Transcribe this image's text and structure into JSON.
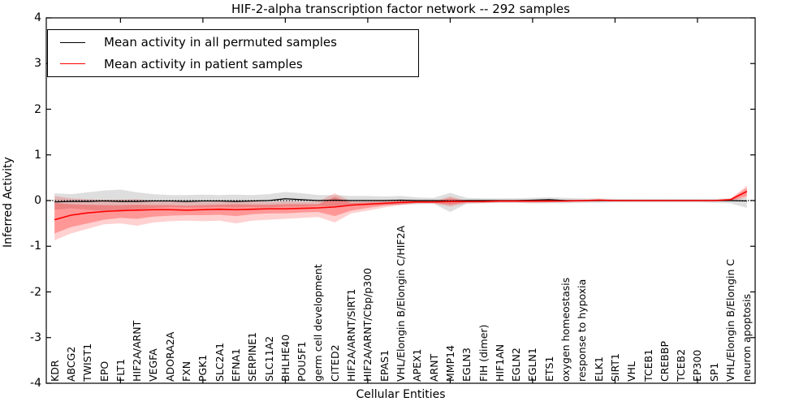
{
  "figure": {
    "title": "HIF-2-alpha transcription factor network -- 292 samples",
    "xlabel": "Cellular Entities",
    "ylabel": "Inferred Activity",
    "legend": [
      {
        "label": "Mean activity in all permuted samples",
        "color": "#000000"
      },
      {
        "label": "Mean activity in patient samples",
        "color": "#ff0000"
      }
    ]
  },
  "chart_data": {
    "type": "line",
    "title": "HIF-2-alpha transcription factor network -- 292 samples",
    "xlabel": "Cellular Entities",
    "ylabel": "Inferred Activity",
    "ylim": [
      -4,
      4
    ],
    "yticks": [
      4,
      3,
      2,
      1,
      0,
      -1,
      -2,
      -3,
      -4
    ],
    "x_major_tick_indices": [
      4,
      9,
      14,
      19,
      24,
      29,
      34,
      39
    ],
    "grid": false,
    "zero_line_style": "black dotted at y=0",
    "legend_position": "upper left",
    "tick_direction": "in",
    "categories": [
      "KDR",
      "ABCG2",
      "TWIST1",
      "EPO",
      "FLT1",
      "HIF2A/ARNT",
      "VEGFA",
      "ADORA2A",
      "FXN",
      "PGK1",
      "SLC2A1",
      "EFNA1",
      "SERPINE1",
      "SLC11A2",
      "BHLHE40",
      "POU5F1",
      "germ cell development",
      "CITED2",
      "HIF2A/ARNT/SIRT1",
      "HIF2A/ARNT/Cbp/p300",
      "EPAS1",
      "VHL/Elongin B/Elongin C/HIF2A",
      "APEX1",
      "ARNT",
      "MMP14",
      "EGLN3",
      "FIH (dimer)",
      "HIF1AN",
      "EGLN2",
      "EGLN1",
      "ETS1",
      "oxygen homeostasis",
      "response to hypoxia",
      "ELK1",
      "SIRT1",
      "VHL",
      "TCEB1",
      "CREBBP",
      "TCEB2",
      "EP300",
      "SP1",
      "VHL/Elongin B/Elongin C",
      "neuron apoptosis"
    ],
    "series": [
      {
        "name": "Mean activity in all permuted samples",
        "color": "#000000",
        "linewidth": 1.2,
        "values": [
          -0.03,
          -0.02,
          -0.02,
          -0.01,
          -0.02,
          -0.02,
          -0.01,
          -0.01,
          -0.02,
          -0.01,
          -0.01,
          -0.02,
          -0.01,
          0,
          0.04,
          0.02,
          0,
          0.01,
          0,
          0,
          0,
          0.01,
          0,
          0,
          -0.01,
          0,
          0,
          0,
          0,
          0.01,
          0.02,
          0,
          0,
          0,
          0,
          0,
          0,
          0,
          0,
          0,
          0,
          0,
          -0.01
        ]
      },
      {
        "name": "Mean activity in patient samples",
        "color": "#ff0000",
        "linewidth": 1.6,
        "values": [
          -0.42,
          -0.32,
          -0.27,
          -0.24,
          -0.22,
          -0.21,
          -0.2,
          -0.2,
          -0.21,
          -0.2,
          -0.19,
          -0.2,
          -0.19,
          -0.18,
          -0.18,
          -0.17,
          -0.16,
          -0.14,
          -0.1,
          -0.08,
          -0.06,
          -0.04,
          -0.03,
          -0.03,
          -0.02,
          -0.02,
          -0.02,
          -0.01,
          -0.01,
          -0.01,
          -0.01,
          -0.01,
          0,
          0.01,
          0,
          0,
          0,
          0,
          0,
          0,
          0,
          0.02,
          0.2
        ]
      }
    ],
    "bands": [
      {
        "name": "permuted samples std band",
        "color": "#000000",
        "opacity": 0.13,
        "upper": [
          0.16,
          0.14,
          0.18,
          0.22,
          0.24,
          0.18,
          0.14,
          0.12,
          0.12,
          0.13,
          0.12,
          0.13,
          0.12,
          0.14,
          0.19,
          0.16,
          0.12,
          0.12,
          0.1,
          0.1,
          0.09,
          0.1,
          0.07,
          0.06,
          0.17,
          0.06,
          0.05,
          0.05,
          0.05,
          0.06,
          0.07,
          0.06,
          0.05,
          0.05,
          0.04,
          0.04,
          0.04,
          0.04,
          0.04,
          0.04,
          0.04,
          0.05,
          0.06
        ],
        "lower": [
          -0.2,
          -0.17,
          -0.2,
          -0.23,
          -0.25,
          -0.2,
          -0.16,
          -0.14,
          -0.15,
          -0.15,
          -0.14,
          -0.15,
          -0.14,
          -0.15,
          -0.13,
          -0.13,
          -0.12,
          -0.12,
          -0.11,
          -0.1,
          -0.09,
          -0.09,
          -0.08,
          -0.07,
          -0.25,
          -0.07,
          -0.06,
          -0.05,
          -0.05,
          -0.06,
          -0.06,
          -0.06,
          -0.05,
          -0.05,
          -0.04,
          -0.04,
          -0.04,
          -0.04,
          -0.04,
          -0.04,
          -0.05,
          -0.06,
          -0.16
        ]
      },
      {
        "name": "patient samples outer band",
        "color": "#ff0000",
        "opacity": 0.18,
        "upper": [
          0.1,
          0.05,
          0.03,
          0.02,
          0.02,
          0.03,
          0,
          -0.02,
          -0.02,
          -0.03,
          -0.02,
          0,
          -0.02,
          -0.03,
          -0.02,
          -0.03,
          -0.02,
          0.16,
          -0.02,
          -0.02,
          0,
          0.02,
          0,
          -0.01,
          0.09,
          0,
          0,
          0,
          0,
          0.01,
          0.02,
          0.01,
          0.01,
          0.03,
          0.02,
          0.01,
          0.01,
          0.01,
          0.01,
          0.01,
          0.01,
          0.04,
          0.33
        ],
        "lower": [
          -0.87,
          -0.72,
          -0.62,
          -0.52,
          -0.5,
          -0.55,
          -0.48,
          -0.45,
          -0.44,
          -0.45,
          -0.44,
          -0.5,
          -0.44,
          -0.42,
          -0.4,
          -0.38,
          -0.36,
          -0.48,
          -0.28,
          -0.22,
          -0.15,
          -0.1,
          -0.06,
          -0.06,
          -0.13,
          -0.06,
          -0.05,
          -0.04,
          -0.04,
          -0.05,
          -0.04,
          -0.03,
          -0.03,
          -0.02,
          -0.02,
          -0.02,
          -0.02,
          -0.02,
          -0.02,
          -0.02,
          -0.02,
          -0.01,
          0.06
        ]
      },
      {
        "name": "patient samples inner band",
        "color": "#ff0000",
        "opacity": 0.28,
        "upper": [
          -0.05,
          -0.08,
          -0.09,
          -0.1,
          -0.1,
          -0.09,
          -0.1,
          -0.1,
          -0.11,
          -0.1,
          -0.09,
          -0.08,
          -0.09,
          -0.09,
          -0.08,
          -0.08,
          -0.08,
          0.08,
          -0.05,
          -0.04,
          -0.03,
          -0.01,
          -0.01,
          -0.02,
          0.05,
          -0.01,
          -0.01,
          0,
          0,
          0,
          0.01,
          0,
          0,
          0.02,
          0.01,
          0,
          0,
          0,
          0,
          0,
          0,
          0.03,
          0.28
        ],
        "lower": [
          -0.72,
          -0.58,
          -0.5,
          -0.42,
          -0.38,
          -0.4,
          -0.35,
          -0.33,
          -0.32,
          -0.32,
          -0.31,
          -0.34,
          -0.3,
          -0.28,
          -0.28,
          -0.26,
          -0.25,
          -0.34,
          -0.22,
          -0.16,
          -0.11,
          -0.08,
          -0.05,
          -0.05,
          -0.09,
          -0.04,
          -0.04,
          -0.03,
          -0.03,
          -0.03,
          -0.03,
          -0.02,
          -0.02,
          -0.01,
          -0.01,
          -0.01,
          -0.01,
          -0.01,
          -0.01,
          -0.01,
          -0.01,
          0,
          0.1
        ]
      }
    ]
  }
}
